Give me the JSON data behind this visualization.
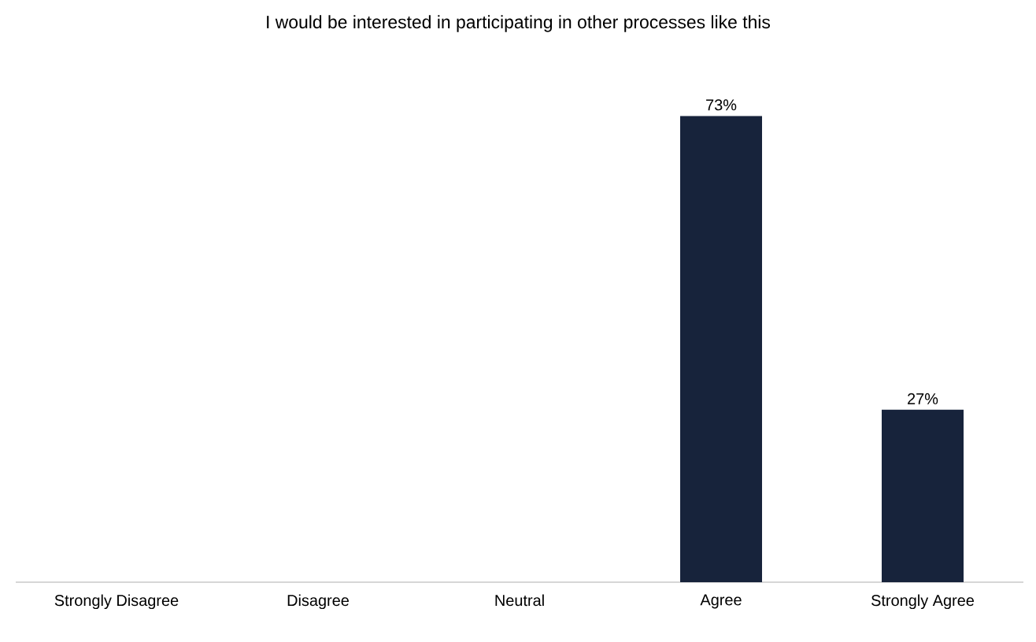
{
  "chart_data": {
    "type": "bar",
    "title": "I would be interested in participating in other processes like this",
    "categories": [
      "Strongly Disagree",
      "Disagree",
      "Neutral",
      "Agree",
      "Strongly Agree"
    ],
    "values": [
      0,
      0,
      0,
      73,
      27
    ],
    "value_labels": [
      null,
      null,
      null,
      "73%",
      "27%"
    ],
    "color": "#17233b"
  }
}
